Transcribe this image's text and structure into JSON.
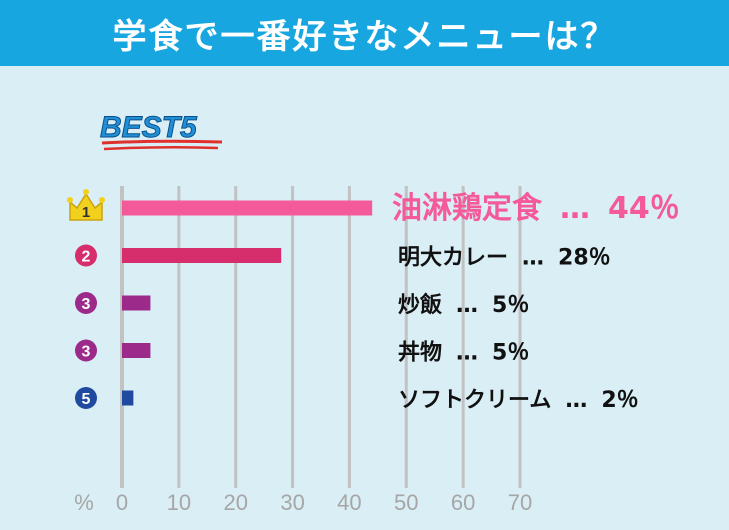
{
  "header": {
    "title": "学食で一番好きなメニューは？"
  },
  "badge": {
    "text": "BEST5"
  },
  "chart_data": {
    "type": "bar",
    "orientation": "horizontal",
    "unit_label": "%",
    "x_ticks": [
      0,
      10,
      20,
      30,
      40,
      50,
      60,
      70
    ],
    "xlim": [
      0,
      70
    ],
    "grid": true,
    "bars": [
      {
        "rank": "1",
        "label": "油淋鶏定食",
        "value": 44,
        "display": "44％",
        "color": "#f45a9a",
        "rank_style": "crown",
        "highlight": true
      },
      {
        "rank": "2",
        "label": "明大カレー",
        "value": 28,
        "display": "28％",
        "color": "#d62d6c",
        "rank_style": "circle",
        "highlight": false
      },
      {
        "rank": "3",
        "label": "炒飯",
        "value": 5,
        "display": "5％",
        "color": "#9c2a8a",
        "rank_style": "circle",
        "highlight": false
      },
      {
        "rank": "3",
        "label": "丼物",
        "value": 5,
        "display": "5％",
        "color": "#9c2a8a",
        "rank_style": "circle",
        "highlight": false
      },
      {
        "rank": "5",
        "label": "ソフトクリーム",
        "value": 2,
        "display": "2％",
        "color": "#1f4aa0",
        "rank_style": "circle",
        "highlight": false
      }
    ],
    "dots": "…",
    "colors": {
      "axis": "#c2c2c2",
      "tick_text": "#a6a6a6",
      "label_text": "#111111",
      "highlight_text": "#f45a9a",
      "crown": "#f2d11e"
    }
  }
}
